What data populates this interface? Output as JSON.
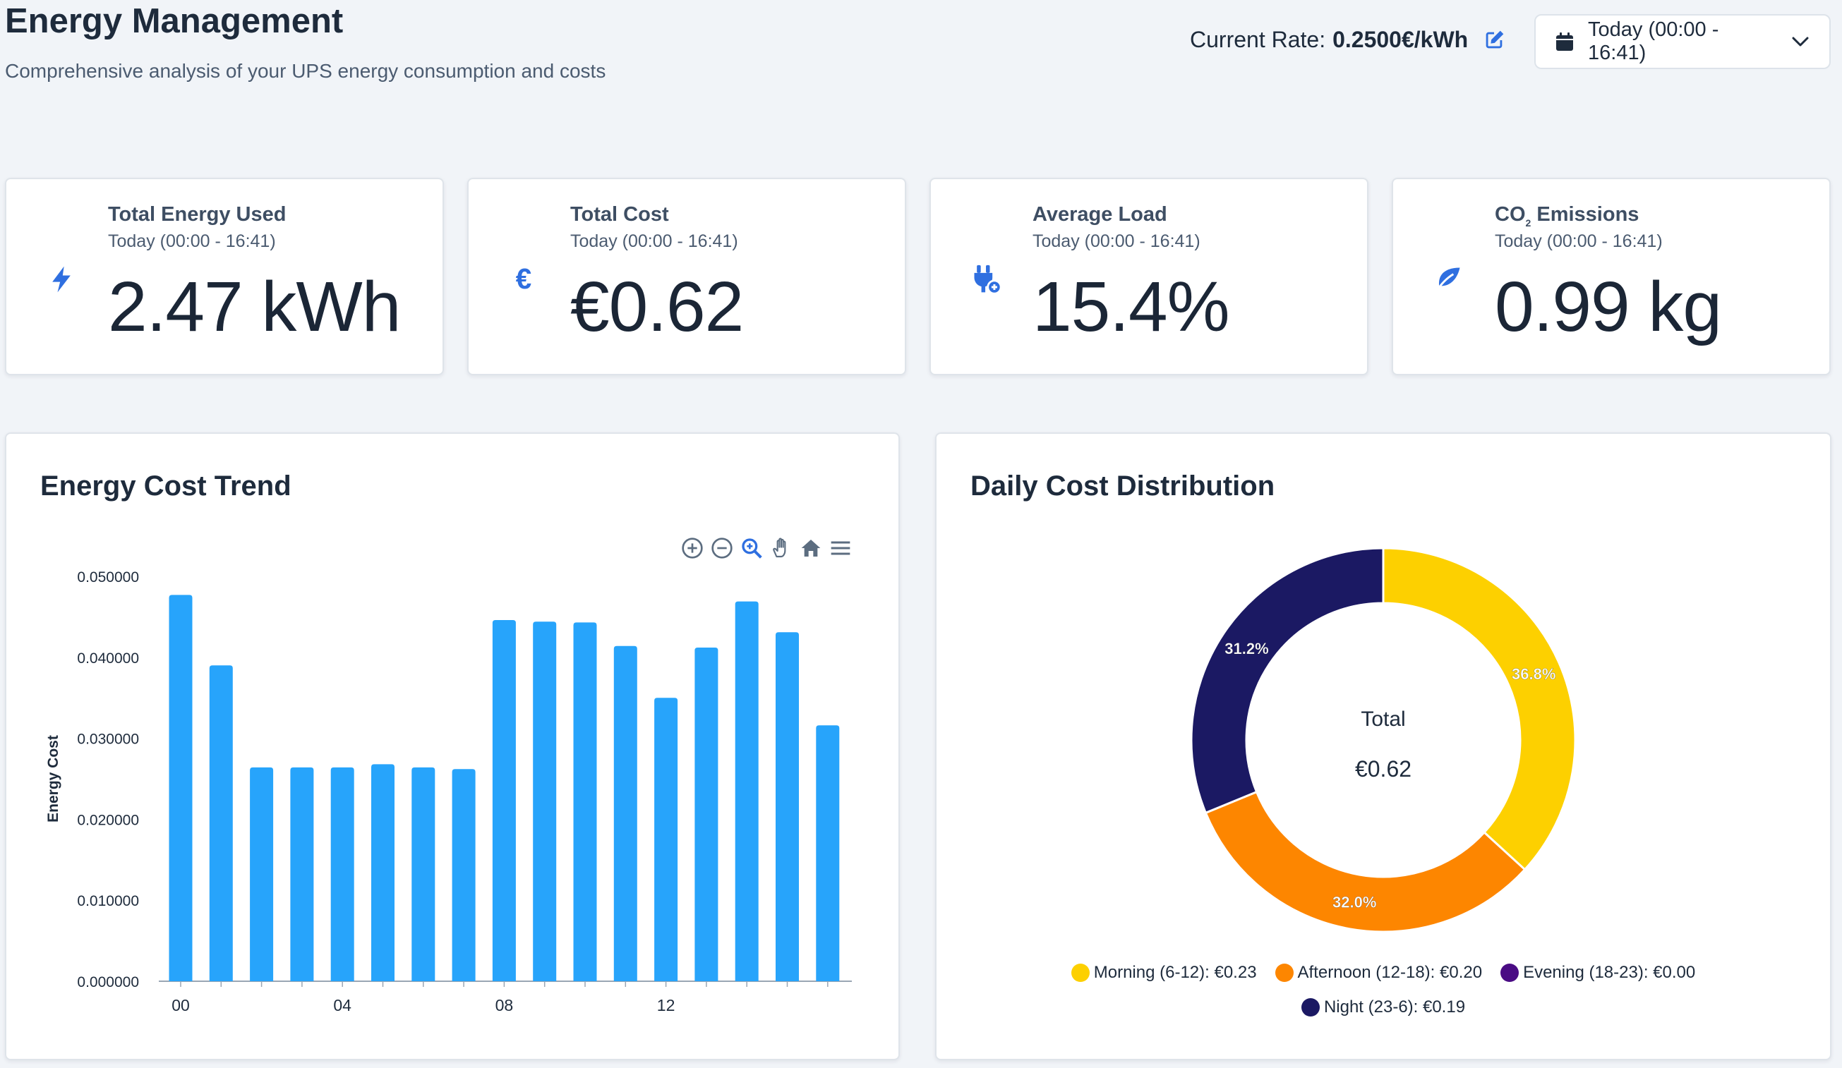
{
  "header": {
    "title": "Energy Management",
    "subtitle": "Comprehensive analysis of your UPS energy consumption and costs",
    "rate_label": "Current Rate:",
    "rate_value": "0.2500€/kWh",
    "range_label": "Today (00:00 - 16:41)"
  },
  "stats": [
    {
      "title": "Total Energy Used",
      "period": "Today (00:00 - 16:41)",
      "value": "2.47 kWh",
      "icon": "bolt-icon"
    },
    {
      "title": "Total Cost",
      "period": "Today (00:00 - 16:41)",
      "value": "€0.62",
      "icon": "euro-icon"
    },
    {
      "title": "Average Load",
      "period": "Today (00:00 - 16:41)",
      "value": "15.4%",
      "icon": "plug-icon"
    },
    {
      "title_main": "CO",
      "title_sub": "2",
      "title_rest": " Emissions",
      "period": "Today (00:00 - 16:41)",
      "value": "0.99 kg",
      "icon": "leaf-icon"
    }
  ],
  "colors": {
    "accent": "#2f6fe0",
    "bar": "#27a4fb",
    "morning": "#fdd000",
    "afternoon": "#fd8600",
    "evening": "#4a0c84",
    "night": "#1b1963"
  },
  "trend": {
    "title": "Energy Cost Trend",
    "toolbar": [
      "zoom-in-icon",
      "zoom-out-icon",
      "zoom-select-icon",
      "pan-hand-icon",
      "home-reset-icon",
      "menu-icon"
    ]
  },
  "distribution": {
    "title": "Daily Cost Distribution",
    "center_label": "Total",
    "center_value": "€0.62",
    "legend": [
      {
        "label": "Morning (6-12): €0.23",
        "color": "#fdd000"
      },
      {
        "label": "Afternoon (12-18): €0.20",
        "color": "#fd8600"
      },
      {
        "label": "Evening (18-23): €0.00",
        "color": "#4a0c84"
      },
      {
        "label": "Night (23-6): €0.19",
        "color": "#1b1963"
      }
    ]
  },
  "chart_data": [
    {
      "type": "bar",
      "title": "Energy Cost Trend",
      "ylabel": "Energy Cost",
      "xlabel": "",
      "ylim": [
        0,
        0.05
      ],
      "yticks": [
        "0.000000",
        "0.010000",
        "0.020000",
        "0.030000",
        "0.040000",
        "0.050000"
      ],
      "xticks": [
        "00",
        "04",
        "08",
        "12"
      ],
      "x": [
        0,
        1,
        2,
        3,
        4,
        5,
        6,
        7,
        8,
        9,
        10,
        11,
        12,
        13,
        14,
        15,
        16
      ],
      "values": [
        0.0477,
        0.039,
        0.0264,
        0.0264,
        0.0264,
        0.0268,
        0.0264,
        0.0262,
        0.0446,
        0.0444,
        0.0443,
        0.0414,
        0.035,
        0.0412,
        0.0469,
        0.0431,
        0.0316
      ],
      "grid": false
    },
    {
      "type": "pie",
      "title": "Daily Cost Distribution",
      "labels": [
        "Morning (6-12)",
        "Afternoon (12-18)",
        "Evening (18-23)",
        "Night (23-6)"
      ],
      "values": [
        36.8,
        32.0,
        0.0,
        31.2
      ],
      "value_labels": [
        "36.8%",
        "32.0%",
        "",
        "31.2%"
      ],
      "donut": true,
      "legend": "bottom"
    }
  ]
}
